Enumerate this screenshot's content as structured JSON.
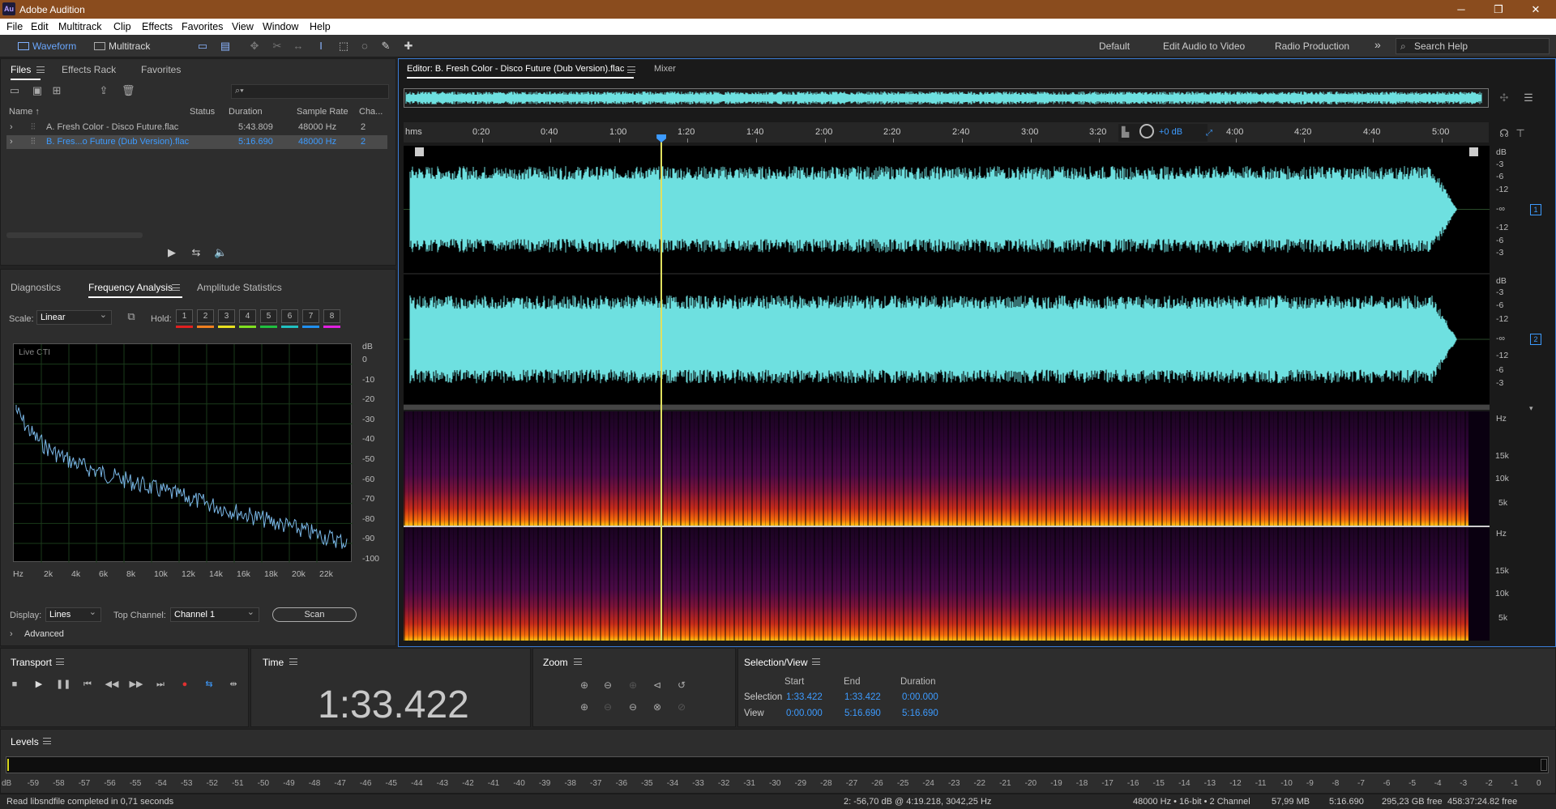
{
  "app": {
    "title": "Adobe Audition",
    "logo": "Au"
  },
  "menu": [
    "File",
    "Edit",
    "Multitrack",
    "Clip",
    "Effects",
    "Favorites",
    "View",
    "Window",
    "Help"
  ],
  "toolbar": {
    "waveform_label": "Waveform",
    "multitrack_label": "Multitrack",
    "workspaces": [
      "Default",
      "Edit Audio to Video",
      "Radio Production"
    ],
    "search_placeholder": "Search Help"
  },
  "files_panel": {
    "tabs": [
      "Files",
      "Effects Rack",
      "Favorites"
    ],
    "columns": [
      "Name ↑",
      "Status",
      "Duration",
      "Sample Rate",
      "Cha..."
    ],
    "rows": [
      {
        "name": "A. Fresh Color - Disco Future.flac",
        "duration": "5:43.809",
        "sample_rate": "48000 Hz",
        "channels": "2",
        "selected": false
      },
      {
        "name": "B. Fres...o Future (Dub Version).flac",
        "duration": "5:16.690",
        "sample_rate": "48000 Hz",
        "channels": "2",
        "selected": true
      }
    ]
  },
  "freq_panel": {
    "tabs": [
      "Diagnostics",
      "Frequency Analysis",
      "Amplitude Statistics"
    ],
    "scale_label": "Scale:",
    "scale_value": "Linear",
    "hold_label": "Hold:",
    "hold_buttons": [
      "1",
      "2",
      "3",
      "4",
      "5",
      "6",
      "7",
      "8"
    ],
    "hold_colors": [
      "#e02020",
      "#f08020",
      "#e8e020",
      "#80e020",
      "#20c040",
      "#20c0c0",
      "#2090f0",
      "#e020e0"
    ],
    "graph_label": "Live CTI",
    "y_unit": "dB",
    "y_ticks": [
      "0",
      "-10",
      "-20",
      "-30",
      "-40",
      "-50",
      "-60",
      "-70",
      "-80",
      "-90",
      "-100"
    ],
    "x_ticks": [
      "Hz",
      "2k",
      "4k",
      "6k",
      "8k",
      "10k",
      "12k",
      "14k",
      "16k",
      "18k",
      "20k",
      "22k"
    ],
    "display_label": "Display:",
    "display_value": "Lines",
    "top_channel_label": "Top Channel:",
    "top_channel_value": "Channel 1",
    "scan_label": "Scan",
    "advanced_label": "Advanced"
  },
  "editor": {
    "tab_label": "Editor: B. Fresh Color - Disco Future (Dub Version).flac",
    "mixer_label": "Mixer",
    "ruler_unit": "hms",
    "ruler_ticks": [
      "0:20",
      "0:40",
      "1:00",
      "1:20",
      "1:40",
      "2:00",
      "2:20",
      "2:40",
      "3:00",
      "3:20",
      "4:00",
      "4:20",
      "4:40",
      "5:00"
    ],
    "gain_label": "+0 dB",
    "db_labels_top": [
      "dB",
      "-3",
      "-6",
      "-12",
      "-∞",
      "-12",
      "-6",
      "-3"
    ],
    "channel_badges": [
      "1",
      "2"
    ],
    "hz_labels": [
      "Hz",
      "15k",
      "10k",
      "5k"
    ],
    "playhead_fraction": 0.2367,
    "wave_color": "#6ee0e0"
  },
  "transport": {
    "title": "Transport"
  },
  "time": {
    "title": "Time",
    "value": "1:33.422"
  },
  "zoom": {
    "title": "Zoom"
  },
  "selection_view": {
    "title": "Selection/View",
    "headers": [
      "Start",
      "End",
      "Duration"
    ],
    "rows": [
      {
        "label": "Selection",
        "start": "1:33.422",
        "end": "1:33.422",
        "duration": "0:00.000"
      },
      {
        "label": "View",
        "start": "0:00.000",
        "end": "5:16.690",
        "duration": "5:16.690"
      }
    ]
  },
  "levels": {
    "title": "Levels",
    "ticks": [
      "dB",
      "-59",
      "-58",
      "-57",
      "-56",
      "-55",
      "-54",
      "-53",
      "-52",
      "-51",
      "-50",
      "-49",
      "-48",
      "-47",
      "-46",
      "-45",
      "-44",
      "-43",
      "-42",
      "-41",
      "-40",
      "-39",
      "-38",
      "-37",
      "-36",
      "-35",
      "-34",
      "-33",
      "-32",
      "-31",
      "-30",
      "-29",
      "-28",
      "-27",
      "-26",
      "-25",
      "-24",
      "-23",
      "-22",
      "-21",
      "-20",
      "-19",
      "-18",
      "-17",
      "-16",
      "-15",
      "-14",
      "-13",
      "-12",
      "-11",
      "-10",
      "-9",
      "-8",
      "-7",
      "-6",
      "-5",
      "-4",
      "-3",
      "-2",
      "-1",
      "0"
    ]
  },
  "status": {
    "message": "Read libsndfile completed in 0,71 seconds",
    "cursor": "2: -56,70 dB @ 4:19.218, 3042,25 Hz",
    "format": "48000 Hz • 16-bit • 2 Channel",
    "size": "57,99 MB",
    "duration": "5:16.690",
    "free": "295,23 GB free",
    "free_time": "458:37:24.82 free"
  }
}
